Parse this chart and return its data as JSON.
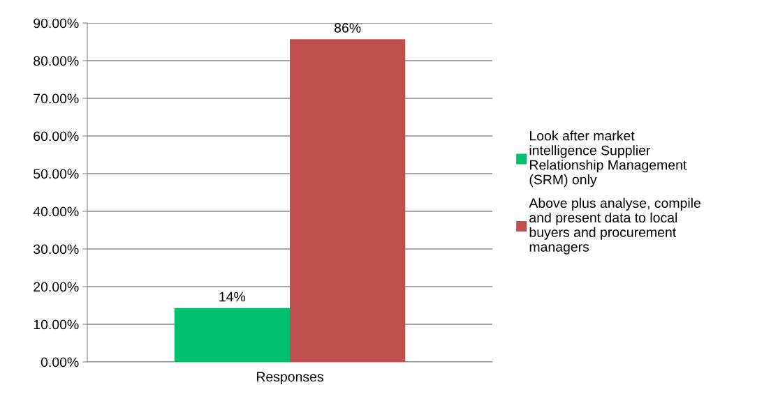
{
  "chart_data": {
    "type": "bar",
    "categories": [
      "Responses"
    ],
    "series": [
      {
        "name": "Look after market intelligence Supplier Relationship Management (SRM) only",
        "color": "#00bf6f",
        "values": [
          14.3
        ],
        "value_labels": [
          "14%"
        ]
      },
      {
        "name": "Above plus analyse, compile and present data to local buyers and procurement managers",
        "color": "#c0504d",
        "values": [
          85.7
        ],
        "value_labels": [
          "86%"
        ]
      }
    ],
    "ylim": [
      0,
      90
    ],
    "yticks": [
      {
        "value": 0,
        "label": "0.00%"
      },
      {
        "value": 10,
        "label": "10.00%"
      },
      {
        "value": 20,
        "label": "20.00%"
      },
      {
        "value": 30,
        "label": "30.00%"
      },
      {
        "value": 40,
        "label": "40.00%"
      },
      {
        "value": 50,
        "label": "50.00%"
      },
      {
        "value": 60,
        "label": "60.00%"
      },
      {
        "value": 70,
        "label": "70.00%"
      },
      {
        "value": 80,
        "label": "80.00%"
      },
      {
        "value": 90,
        "label": "90.00%"
      }
    ],
    "grid": "y",
    "legend": "right"
  }
}
